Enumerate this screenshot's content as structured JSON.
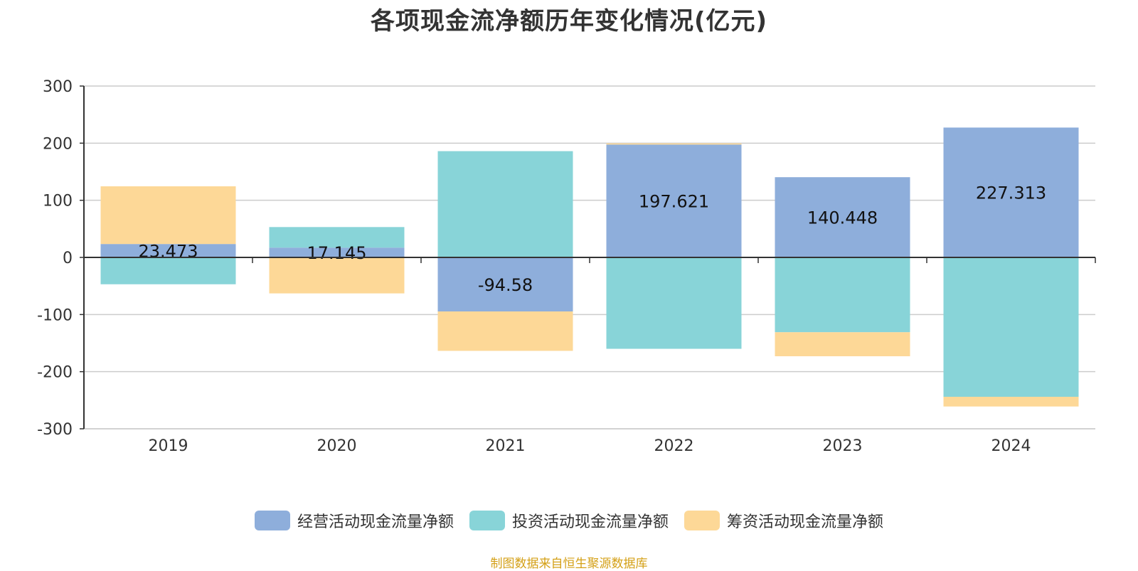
{
  "chart_data": {
    "type": "bar",
    "stacked": true,
    "title": "各项现金流净额历年变化情况(亿元)",
    "categories": [
      "2019",
      "2020",
      "2021",
      "2022",
      "2023",
      "2024"
    ],
    "series": [
      {
        "name": "经营活动现金流量净额",
        "color": "#8eaedb",
        "values": [
          23.473,
          17.145,
          -94.58,
          197.621,
          140.448,
          227.313
        ],
        "labels": [
          "23.473",
          "17.145",
          "-94.58",
          "197.621",
          "140.448",
          "227.313"
        ]
      },
      {
        "name": "投资活动现金流量净额",
        "color": "#88d4d8",
        "values": [
          -47,
          36,
          186,
          -160,
          -131,
          -244
        ]
      },
      {
        "name": "筹资活动现金流量净额",
        "color": "#fdd897",
        "values": [
          101,
          -63,
          -69,
          2,
          -42,
          -17
        ]
      }
    ],
    "ylim": [
      -300,
      300
    ],
    "yticks": [
      300,
      200,
      100,
      0,
      -100,
      -200,
      -300
    ],
    "xlabel": "",
    "ylabel": "",
    "grid": true,
    "legend_position": "bottom"
  },
  "source_note": "制图数据来自恒生聚源数据库"
}
